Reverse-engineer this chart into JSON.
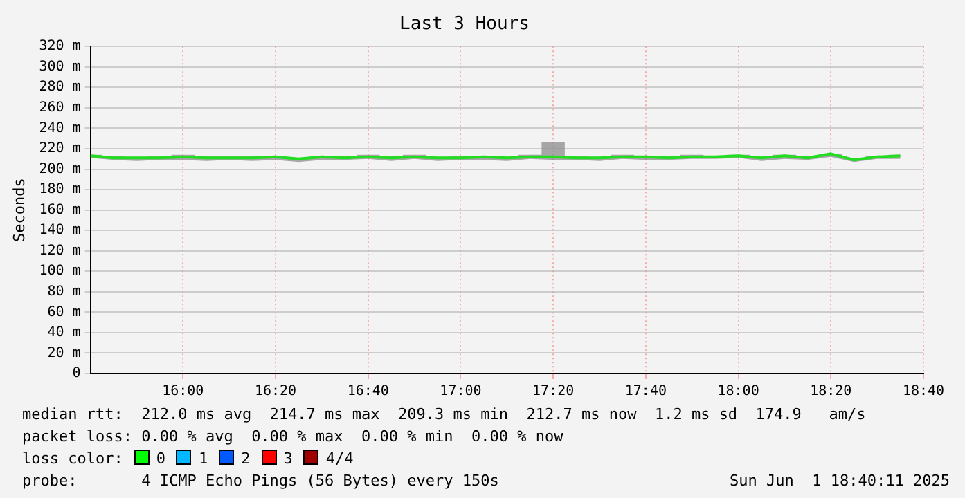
{
  "chart_data": {
    "type": "line",
    "title": "Last 3 Hours",
    "ylabel": "Seconds",
    "x": [
      15.6667,
      15.75,
      15.8333,
      15.9167,
      16,
      16.0833,
      16.1667,
      16.25,
      16.3333,
      16.4167,
      16.5,
      16.5833,
      16.6667,
      16.75,
      16.8333,
      16.9167,
      17,
      17.0833,
      17.1667,
      17.25,
      17.3333,
      17.4167,
      17.5,
      17.5833,
      17.6667,
      17.75,
      17.8333,
      17.9167,
      18,
      18.0833,
      18.1667,
      18.25,
      18.3333,
      18.4167,
      18.5,
      18.5833
    ],
    "series": [
      {
        "color": "#22dd22",
        "values": [
          213,
          211,
          211,
          211,
          212,
          211,
          211,
          211,
          212,
          210,
          212,
          211,
          212,
          211,
          212,
          211,
          211,
          212,
          211,
          212,
          212,
          211,
          211,
          212,
          212,
          211,
          212,
          212,
          213,
          211,
          213,
          211,
          215,
          209,
          212,
          213
        ],
        "lower": [
          211,
          209,
          208,
          209,
          209,
          208,
          209,
          208,
          209,
          207,
          209,
          209,
          210,
          208,
          210,
          208,
          209,
          209,
          208,
          210,
          209,
          209,
          208,
          210,
          209,
          209,
          210,
          210,
          211,
          208,
          210,
          209,
          212,
          207,
          210,
          210
        ],
        "upper": [
          214,
          213,
          212,
          213,
          214,
          213,
          213,
          213,
          213,
          211,
          213,
          213,
          214,
          213,
          214,
          212,
          213,
          213,
          212,
          214,
          226,
          213,
          212,
          214,
          213,
          213,
          214,
          213,
          214,
          212,
          214,
          213,
          215,
          211,
          213,
          214
        ]
      }
    ],
    "xlim": [
      15.6667,
      18.6667
    ],
    "xticks": [
      {
        "value": 16,
        "label": "16:00"
      },
      {
        "value": 16.3333,
        "label": "16:20"
      },
      {
        "value": 16.6667,
        "label": "16:40"
      },
      {
        "value": 17,
        "label": "17:00"
      },
      {
        "value": 17.3333,
        "label": "17:20"
      },
      {
        "value": 17.6667,
        "label": "17:40"
      },
      {
        "value": 18,
        "label": "18:00"
      },
      {
        "value": 18.3333,
        "label": "18:20"
      },
      {
        "value": 18.6667,
        "label": "18:40"
      }
    ],
    "ylim": [
      0,
      320
    ],
    "yticks": [
      0,
      {
        "value": 20,
        "label": "20 m"
      },
      {
        "value": 40,
        "label": "40 m"
      },
      {
        "value": 60,
        "label": "60 m"
      },
      {
        "value": 80,
        "label": "80 m"
      },
      {
        "value": 100,
        "label": "100 m"
      },
      {
        "value": 120,
        "label": "120 m"
      },
      {
        "value": 140,
        "label": "140 m"
      },
      {
        "value": 160,
        "label": "160 m"
      },
      {
        "value": 180,
        "label": "180 m"
      },
      {
        "value": 200,
        "label": "200 m"
      },
      {
        "value": 220,
        "label": "220 m"
      },
      {
        "value": 240,
        "label": "240 m"
      },
      {
        "value": 260,
        "label": "260 m"
      },
      {
        "value": 280,
        "label": "280 m"
      },
      {
        "value": 300,
        "label": "300 m"
      },
      {
        "value": 320,
        "label": "320 m"
      }
    ],
    "grid": true,
    "legend": false,
    "marker": "none",
    "line_style": "solid",
    "annotations": [
      "median rtt:  212.0 ms avg  214.7 ms max  209.3 ms min  212.7 ms now  1.2 ms sd  174.9   am/s",
      "packet loss: 0.00 % avg  0.00 % max  0.00 % min  0.00 % now",
      "loss color:",
      "0",
      "1",
      "2",
      "3",
      "4/4",
      "probe:       4 ICMP Echo Pings (56 Bytes) every 150s",
      "Sun Jun  1 18:40:11 2025"
    ]
  }
}
